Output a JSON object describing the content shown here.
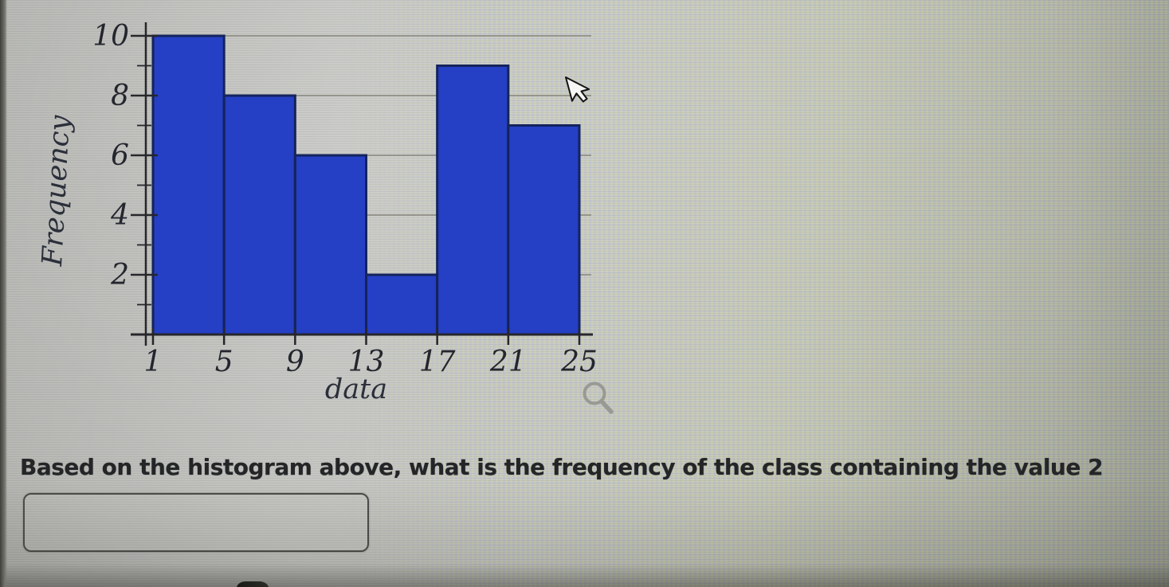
{
  "chart_data": {
    "type": "bar",
    "title": "",
    "xlabel": "data",
    "ylabel": "Frequency",
    "categories": [
      "1-5",
      "5-9",
      "9-13",
      "13-17",
      "17-21",
      "21-25"
    ],
    "classes": [
      [
        1,
        5
      ],
      [
        5,
        9
      ],
      [
        9,
        13
      ],
      [
        13,
        17
      ],
      [
        17,
        21
      ],
      [
        21,
        25
      ]
    ],
    "values": [
      10,
      8,
      6,
      2,
      9,
      7
    ],
    "x_ticks": [
      1,
      5,
      9,
      13,
      17,
      21,
      25
    ],
    "y_ticks": [
      2,
      4,
      6,
      8,
      10
    ],
    "y_minor_ticks": [
      1,
      3,
      5,
      7,
      9
    ],
    "xlim": [
      1,
      25
    ],
    "ylim": [
      0,
      10
    ],
    "grid": "horizontal",
    "legend": "none",
    "colors": {
      "bar_fill": "#2540c4",
      "bar_edge": "#14235c",
      "gridline": "#95958d",
      "axis": "#26262b",
      "tick_label": "#24262e"
    }
  },
  "question": {
    "text": "Based on the histogram above, what is the frequency of the class containing the value 2"
  },
  "answer_input": {
    "value": "",
    "placeholder": ""
  },
  "icons": {
    "zoom_icon": "magnifier",
    "mouse_cursor": "arrow-pointer"
  }
}
